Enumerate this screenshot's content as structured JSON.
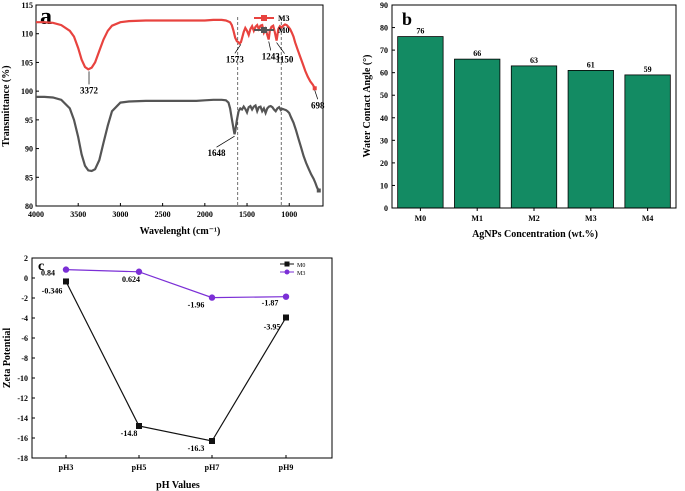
{
  "chart_data": [
    {
      "panel": "a",
      "type": "line",
      "title": "",
      "xlabel": "Wavelenght (cm⁻¹)",
      "ylabel": "Transmittance (%)",
      "xlim": [
        4000,
        600
      ],
      "ylim": [
        80,
        115
      ],
      "xticks": [
        4000,
        3500,
        3000,
        2500,
        2000,
        1500,
        1000,
        500
      ],
      "yticks": [
        80,
        85,
        90,
        95,
        100,
        105,
        110,
        115
      ],
      "legend": [
        "M3",
        "M0"
      ],
      "colors": {
        "M3": "#e8433f",
        "M0": "#555555"
      },
      "series": [
        {
          "name": "M3",
          "x": [
            4000,
            3900,
            3800,
            3700,
            3600,
            3550,
            3500,
            3460,
            3420,
            3380,
            3340,
            3300,
            3250,
            3200,
            3150,
            3100,
            3000,
            2900,
            2700,
            2500,
            2300,
            2100,
            2000,
            1900,
            1800,
            1750,
            1700,
            1680,
            1660,
            1640,
            1620,
            1600,
            1590,
            1573,
            1560,
            1540,
            1520,
            1500,
            1480,
            1460,
            1440,
            1420,
            1400,
            1380,
            1360,
            1340,
            1320,
            1300,
            1280,
            1260,
            1243,
            1230,
            1210,
            1190,
            1170,
            1150,
            1130,
            1110,
            1090,
            1070,
            1050,
            1030,
            1010,
            990,
            970,
            950,
            930,
            900,
            870,
            840,
            810,
            780,
            750,
            720,
            698
          ],
          "y": [
            112,
            112,
            111.9,
            111.5,
            110.5,
            109.5,
            107.5,
            105.5,
            104.2,
            103.8,
            104.1,
            105,
            107,
            109,
            110.5,
            111.4,
            112,
            112.2,
            112.3,
            112.3,
            112.3,
            112.3,
            112.3,
            112.4,
            112.4,
            112.3,
            112,
            111.5,
            110.5,
            109.3,
            108.7,
            108.5,
            108.3,
            108.5,
            109.2,
            110.3,
            111,
            110.5,
            109.8,
            110.8,
            111.3,
            110.5,
            111.2,
            111.5,
            110.8,
            111.4,
            111.5,
            110.2,
            110.8,
            109.8,
            109,
            110.5,
            111.2,
            111.4,
            110.2,
            108.8,
            110.8,
            111.3,
            111.1,
            111.4,
            111.6,
            111.5,
            111.2,
            110.8,
            110.2,
            109.5,
            108.5,
            107.2,
            106,
            104.8,
            103.5,
            102.5,
            101.7,
            101.1,
            100.5
          ]
        },
        {
          "name": "M0",
          "x": [
            4000,
            3900,
            3800,
            3700,
            3600,
            3550,
            3500,
            3460,
            3420,
            3380,
            3340,
            3300,
            3250,
            3200,
            3150,
            3100,
            3000,
            2900,
            2700,
            2500,
            2300,
            2100,
            2000,
            1900,
            1800,
            1750,
            1720,
            1700,
            1680,
            1660,
            1648,
            1640,
            1620,
            1600,
            1580,
            1560,
            1540,
            1520,
            1500,
            1480,
            1460,
            1440,
            1420,
            1400,
            1380,
            1360,
            1340,
            1320,
            1300,
            1280,
            1260,
            1240,
            1220,
            1200,
            1180,
            1160,
            1140,
            1120,
            1100,
            1080,
            1060,
            1040,
            1020,
            1000,
            980,
            950,
            920,
            890,
            860,
            830,
            800,
            770,
            740,
            710,
            690,
            670,
            650
          ],
          "y": [
            99,
            99,
            98.9,
            98.5,
            97,
            95,
            92,
            89,
            87,
            86.2,
            86.1,
            86.4,
            88,
            91,
            94,
            96.5,
            98,
            98.2,
            98.3,
            98.3,
            98.3,
            98.3,
            98.4,
            98.5,
            98.5,
            98.4,
            98,
            97,
            95.2,
            93.5,
            92.5,
            93,
            95,
            96.5,
            97,
            96.8,
            97.3,
            96.9,
            96.3,
            97.2,
            97.4,
            96.8,
            97.3,
            97.5,
            96.5,
            97.2,
            97.3,
            96.5,
            97,
            96.2,
            97,
            97.3,
            97.4,
            97.2,
            96.8,
            96.5,
            97,
            97.2,
            96.7,
            96.9,
            96.8,
            96.7,
            96.5,
            96.2,
            95.5,
            94.5,
            93.2,
            91.7,
            90.2,
            88.7,
            87.5,
            86.5,
            85.5,
            84.7,
            84,
            83.2,
            82.7
          ]
        }
      ],
      "annotations": [
        {
          "text": "3372",
          "x": 3372,
          "y": 103.8,
          "series": "M3"
        },
        {
          "text": "1573",
          "x": 1573,
          "y": 108.5,
          "series": "M3"
        },
        {
          "text": "1243",
          "x": 1243,
          "y": 109,
          "series": "M3"
        },
        {
          "text": "1150",
          "x": 1150,
          "y": 108.8,
          "series": "M3"
        },
        {
          "text": "698",
          "x": 698,
          "y": 100.5,
          "series": "M3"
        },
        {
          "text": "1648",
          "x": 1648,
          "y": 92.5,
          "series": "M0"
        }
      ],
      "reference_lines_x": [
        1610,
        1095
      ]
    },
    {
      "panel": "b",
      "type": "bar",
      "title": "",
      "categories": [
        "M0",
        "M1",
        "M2",
        "M3",
        "M4"
      ],
      "values": [
        76,
        66,
        63,
        61,
        59
      ],
      "xlabel": "AgNPs Concentration (wt.%)",
      "ylabel": "Water Contact Angle (°)",
      "ylim": [
        0,
        90
      ],
      "yticks": [
        0,
        10,
        20,
        30,
        40,
        50,
        60,
        70,
        80,
        90
      ],
      "bar_color": "#138b63"
    },
    {
      "panel": "c",
      "type": "line",
      "title": "",
      "categories": [
        "pH3",
        "pH5",
        "pH7",
        "pH9"
      ],
      "xlabel": "pH Values",
      "ylabel": "Zeta Potential",
      "ylim": [
        -18,
        2
      ],
      "yticks": [
        2,
        0,
        -2,
        -4,
        -6,
        -8,
        -10,
        -12,
        -14,
        -16,
        -18
      ],
      "series": [
        {
          "name": "M0",
          "values": [
            -0.346,
            -14.8,
            -16.3,
            -3.95
          ],
          "labels": [
            "-0.346",
            "-14.8",
            "-16.3",
            "-3.95"
          ],
          "color": "#111111",
          "marker": "square"
        },
        {
          "name": "M3",
          "values": [
            0.84,
            0.624,
            -1.96,
            -1.87
          ],
          "labels": [
            "0.84",
            "0.624",
            "-1.96",
            "-1.87"
          ],
          "color": "#7b2fd6",
          "marker": "circle"
        }
      ]
    }
  ],
  "panel_letters": [
    "a",
    "b",
    "c"
  ]
}
